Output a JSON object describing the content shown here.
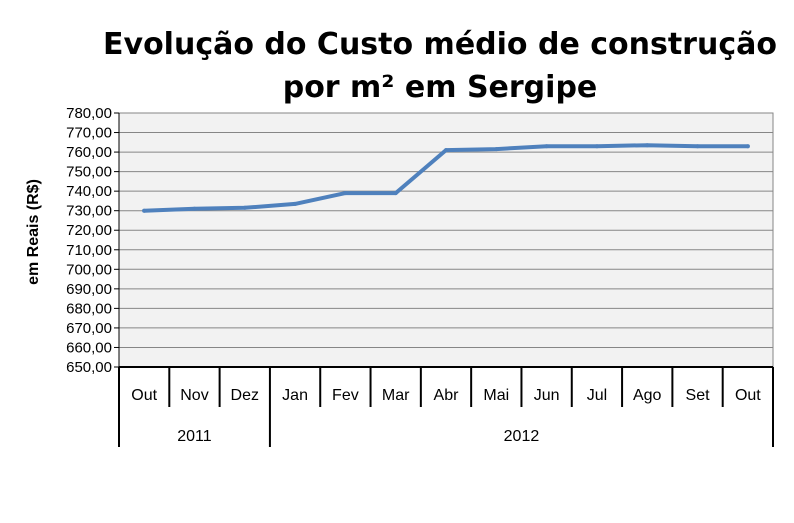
{
  "chart_data": {
    "type": "line",
    "title_lines": [
      "Evolução do Custo médio de construção",
      "por m² em Sergipe"
    ],
    "ylabel": "em Reais (R$)",
    "xlabel": "",
    "categories": [
      "Out",
      "Nov",
      "Dez",
      "Jan",
      "Fev",
      "Mar",
      "Abr",
      "Mai",
      "Jun",
      "Jul",
      "Ago",
      "Set",
      "Out"
    ],
    "groups": [
      {
        "label": "2011",
        "count": 3
      },
      {
        "label": "2012",
        "count": 10
      }
    ],
    "series": [
      {
        "values": [
          730.0,
          731.0,
          731.5,
          733.5,
          739.0,
          739.0,
          761.0,
          761.5,
          763.0,
          763.0,
          763.5,
          763.0,
          763.0
        ],
        "color": "#4f81bd"
      }
    ],
    "ylim": [
      650,
      780
    ],
    "ystep": 10,
    "ytick_labels": [
      "650,00",
      "660,00",
      "670,00",
      "680,00",
      "690,00",
      "700,00",
      "710,00",
      "720,00",
      "730,00",
      "740,00",
      "750,00",
      "760,00",
      "770,00",
      "780,00"
    ],
    "grid": true,
    "plot_background": "#f2f2f2",
    "gridline_color": "#868686"
  }
}
